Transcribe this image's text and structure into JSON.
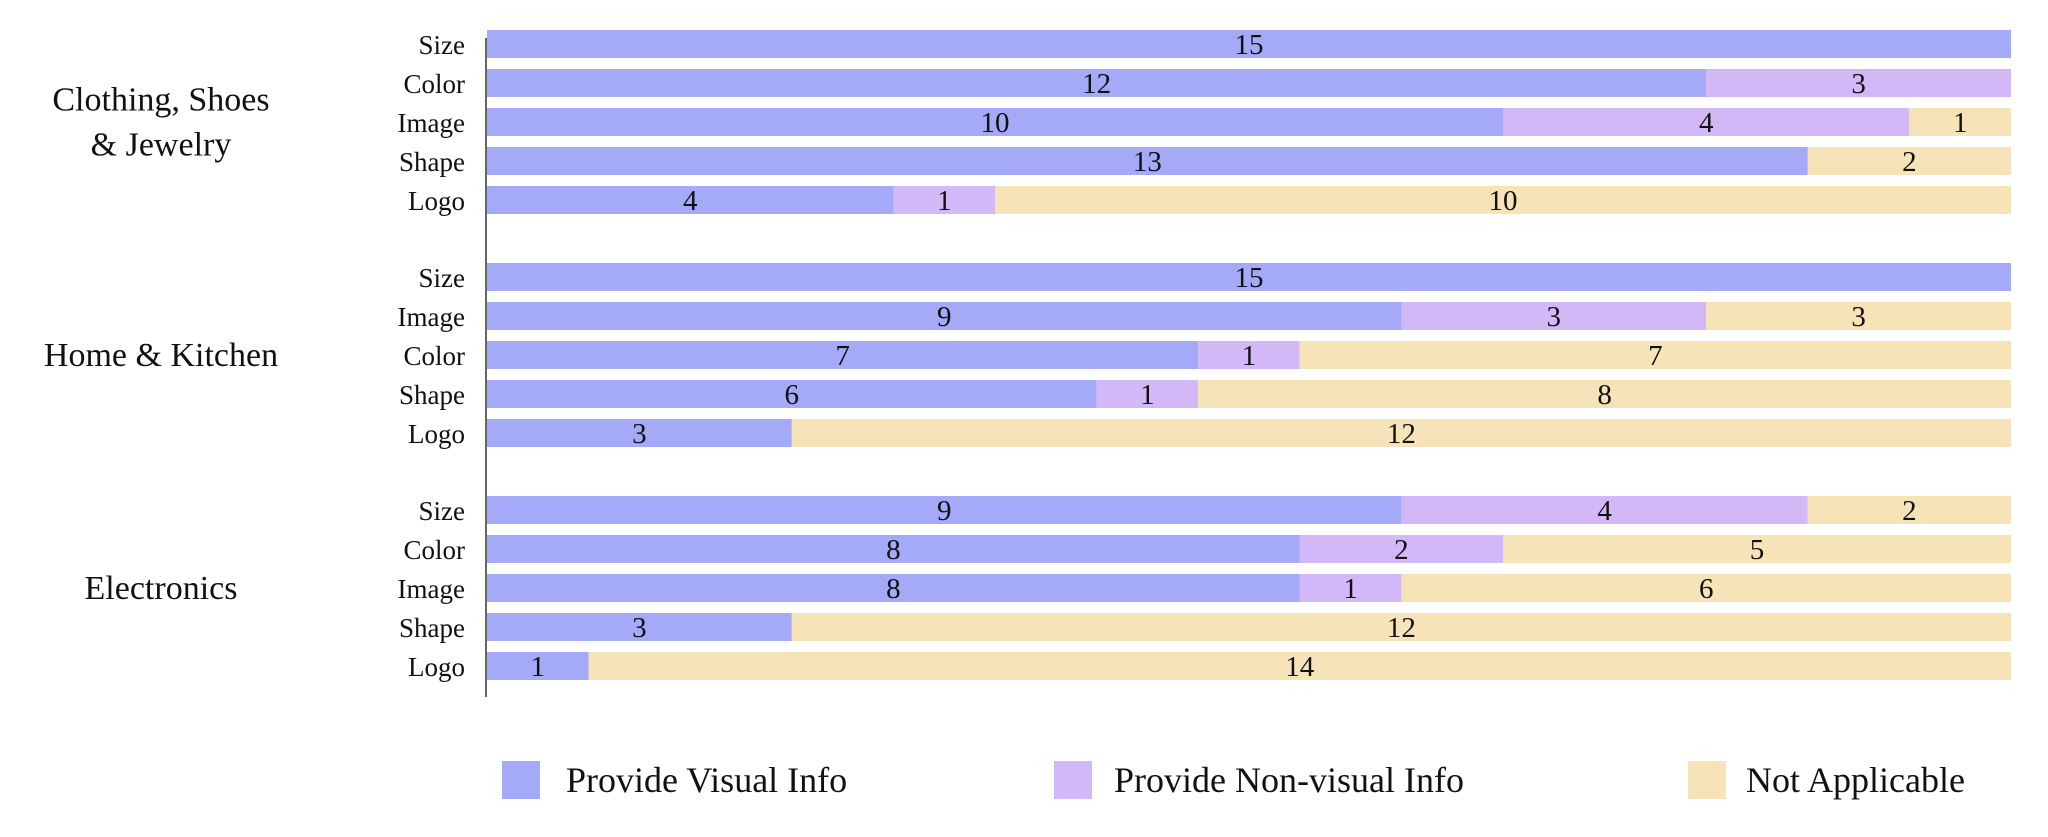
{
  "chart_data": {
    "type": "bar",
    "orientation": "horizontal",
    "stacked": true,
    "xlim": [
      0,
      15
    ],
    "grid": false,
    "legend_position": "bottom",
    "colors": {
      "visual": "#a4a9f8",
      "nonvisual": "#d3b8f8",
      "na": "#f6e3b8"
    },
    "legend": [
      {
        "key": "visual",
        "label": "Provide Visual Info"
      },
      {
        "key": "nonvisual",
        "label": "Provide Non-visual Info"
      },
      {
        "key": "na",
        "label": "Not Applicable"
      }
    ],
    "groups": [
      {
        "label_lines": [
          "Clothing, Shoes",
          "& Jewelry"
        ],
        "rows": [
          {
            "label": "Size",
            "visual": 15,
            "nonvisual": 0,
            "na": 0
          },
          {
            "label": "Color",
            "visual": 12,
            "nonvisual": 3,
            "na": 0
          },
          {
            "label": "Image",
            "visual": 10,
            "nonvisual": 4,
            "na": 1
          },
          {
            "label": "Shape",
            "visual": 13,
            "nonvisual": 0,
            "na": 2
          },
          {
            "label": "Logo",
            "visual": 4,
            "nonvisual": 1,
            "na": 10
          }
        ]
      },
      {
        "label_lines": [
          "Home & Kitchen"
        ],
        "rows": [
          {
            "label": "Size",
            "visual": 15,
            "nonvisual": 0,
            "na": 0
          },
          {
            "label": "Image",
            "visual": 9,
            "nonvisual": 3,
            "na": 3
          },
          {
            "label": "Color",
            "visual": 7,
            "nonvisual": 1,
            "na": 7
          },
          {
            "label": "Shape",
            "visual": 6,
            "nonvisual": 1,
            "na": 8
          },
          {
            "label": "Logo",
            "visual": 3,
            "nonvisual": 0,
            "na": 12
          }
        ]
      },
      {
        "label_lines": [
          "Electronics"
        ],
        "rows": [
          {
            "label": "Size",
            "visual": 9,
            "nonvisual": 4,
            "na": 2
          },
          {
            "label": "Color",
            "visual": 8,
            "nonvisual": 2,
            "na": 5
          },
          {
            "label": "Image",
            "visual": 8,
            "nonvisual": 1,
            "na": 6
          },
          {
            "label": "Shape",
            "visual": 3,
            "nonvisual": 0,
            "na": 12
          },
          {
            "label": "Logo",
            "visual": 1,
            "nonvisual": 0,
            "na": 14
          }
        ]
      }
    ]
  }
}
